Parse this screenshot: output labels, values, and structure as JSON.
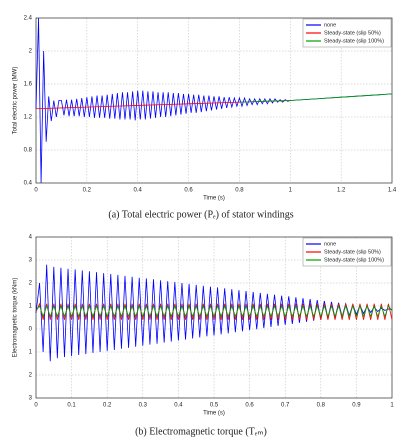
{
  "chart_data": [
    {
      "type": "line",
      "ylabel": "Total electric power (MW)",
      "xlabel": "Time (s)",
      "caption": "(a) Total electric power (Pₑ) of stator windings",
      "xlim": [
        0,
        1.4
      ],
      "xticks": [
        0,
        0.2,
        0.4,
        0.6,
        0.8,
        1,
        1.2,
        1.4
      ],
      "ylim": [
        0.4,
        2.4
      ],
      "yticks": [
        0.4,
        0.8,
        1.2,
        1.6,
        2,
        2.4
      ],
      "grid": true,
      "legend": "top-right",
      "series": [
        {
          "name": "none",
          "color": "#0000ff",
          "x": [
            0,
            0.01,
            0.02,
            0.03,
            0.04,
            0.05,
            0.06,
            0.07,
            0.08,
            0.09,
            0.1,
            0.11,
            0.12,
            0.13,
            0.14,
            0.15,
            0.16,
            0.17,
            0.18,
            0.19,
            0.2,
            0.21,
            0.22,
            0.23,
            0.24,
            0.25,
            0.26,
            0.27,
            0.28,
            0.29,
            0.3,
            0.31,
            0.32,
            0.33,
            0.34,
            0.35,
            0.36,
            0.37,
            0.38,
            0.39,
            0.4,
            0.41,
            0.42,
            0.43,
            0.44,
            0.45,
            0.46,
            0.47,
            0.48,
            0.49,
            0.5,
            0.51,
            0.52,
            0.53,
            0.54,
            0.55,
            0.56,
            0.57,
            0.58,
            0.59,
            0.6,
            0.61,
            0.62,
            0.63,
            0.64,
            0.65,
            0.66,
            0.67,
            0.68,
            0.69,
            0.7,
            0.71,
            0.72,
            0.73,
            0.74,
            0.75,
            0.76,
            0.77,
            0.78,
            0.79,
            0.8,
            0.81,
            0.82,
            0.83,
            0.84,
            0.85,
            0.86,
            0.87,
            0.88,
            0.89,
            0.9,
            0.91,
            0.92,
            0.93,
            0.94,
            0.95,
            0.96,
            0.97,
            0.98,
            0.99,
            1,
            1.1,
            1.2,
            1.3,
            1.4
          ],
          "values": [
            1.3,
            2.4,
            0.4,
            2.0,
            0.9,
            1.45,
            1.15,
            1.4,
            1.2,
            1.4,
            1.4,
            1.22,
            1.41,
            1.21,
            1.41,
            1.21,
            1.42,
            1.21,
            1.43,
            1.2,
            1.44,
            1.2,
            1.45,
            1.19,
            1.46,
            1.19,
            1.46,
            1.19,
            1.47,
            1.18,
            1.48,
            1.18,
            1.49,
            1.17,
            1.5,
            1.17,
            1.5,
            1.17,
            1.51,
            1.16,
            1.52,
            1.17,
            1.52,
            1.17,
            1.51,
            1.18,
            1.51,
            1.19,
            1.5,
            1.2,
            1.5,
            1.2,
            1.5,
            1.21,
            1.49,
            1.22,
            1.49,
            1.23,
            1.48,
            1.24,
            1.48,
            1.25,
            1.47,
            1.25,
            1.47,
            1.26,
            1.46,
            1.27,
            1.46,
            1.28,
            1.45,
            1.29,
            1.45,
            1.3,
            1.44,
            1.31,
            1.44,
            1.32,
            1.43,
            1.33,
            1.43,
            1.33,
            1.43,
            1.34,
            1.42,
            1.35,
            1.42,
            1.35,
            1.42,
            1.36,
            1.42,
            1.36,
            1.42,
            1.37,
            1.42,
            1.38,
            1.41,
            1.38,
            1.41,
            1.39,
            1.4,
            1.42,
            1.44,
            1.46,
            1.48
          ]
        },
        {
          "name": "Steady-state (slip 50%)",
          "color": "#ff0000",
          "x": [
            0,
            0.1,
            0.2,
            0.3,
            0.4,
            0.5,
            0.6,
            0.7,
            0.8,
            0.9,
            1
          ],
          "values": [
            1.3,
            1.31,
            1.32,
            1.33,
            1.34,
            1.35,
            1.36,
            1.37,
            1.38,
            1.39,
            1.4
          ]
        },
        {
          "name": "Steady-state (slip 100%)",
          "color": "#00a000",
          "x": [
            0.8,
            0.9,
            1,
            1.1,
            1.2,
            1.3,
            1.4
          ],
          "values": [
            1.38,
            1.39,
            1.4,
            1.42,
            1.44,
            1.46,
            1.48
          ]
        }
      ]
    },
    {
      "type": "line",
      "ylabel": "Electromagnetic torque (kNm)",
      "xlabel": "Time (s)",
      "caption": "(b) Electromagnetic torque (Tₑₘ)",
      "xlim": [
        0,
        1
      ],
      "xticks": [
        0,
        0.1,
        0.2,
        0.3,
        0.4,
        0.5,
        0.6,
        0.7,
        0.8,
        0.9,
        1
      ],
      "ylim": [
        -3,
        4
      ],
      "yticks": [
        {
          "value": -3,
          "label": "3"
        },
        {
          "value": -2,
          "label": "2"
        },
        {
          "value": -1,
          "label": "1"
        },
        0,
        1,
        2,
        3,
        4
      ],
      "grid": true,
      "legend": "top-right",
      "x": [
        0,
        0.01,
        0.02,
        0.03,
        0.04,
        0.05,
        0.06,
        0.07,
        0.08,
        0.09,
        0.1,
        0.11,
        0.12,
        0.13,
        0.14,
        0.15,
        0.16,
        0.17,
        0.18,
        0.19,
        0.2,
        0.21,
        0.22,
        0.23,
        0.24,
        0.25,
        0.26,
        0.27,
        0.28,
        0.29,
        0.3,
        0.31,
        0.32,
        0.33,
        0.34,
        0.35,
        0.36,
        0.37,
        0.38,
        0.39,
        0.4,
        0.41,
        0.42,
        0.43,
        0.44,
        0.45,
        0.46,
        0.47,
        0.48,
        0.49,
        0.5,
        0.51,
        0.52,
        0.53,
        0.54,
        0.55,
        0.56,
        0.57,
        0.58,
        0.59,
        0.6,
        0.61,
        0.62,
        0.63,
        0.64,
        0.65,
        0.66,
        0.67,
        0.68,
        0.69,
        0.7,
        0.71,
        0.72,
        0.73,
        0.74,
        0.75,
        0.76,
        0.77,
        0.78,
        0.79,
        0.8,
        0.81,
        0.82,
        0.83,
        0.84,
        0.85,
        0.86,
        0.87,
        0.88,
        0.89,
        0.9,
        0.91,
        0.92,
        0.93,
        0.94,
        0.95,
        0.96,
        0.97,
        0.98,
        0.99,
        1
      ],
      "series": [
        {
          "name": "none",
          "color": "#0000ff",
          "values": [
            0.7,
            2.0,
            -1.0,
            2.8,
            -1.4,
            2.7,
            -1.27,
            2.66,
            -1.22,
            2.62,
            -1.18,
            2.59,
            -1.13,
            2.55,
            -1.09,
            2.51,
            -1.04,
            2.47,
            -1.0,
            2.43,
            -0.95,
            2.39,
            -0.91,
            2.35,
            -0.86,
            2.31,
            -0.82,
            2.27,
            -0.77,
            2.23,
            -0.73,
            2.2,
            -0.68,
            2.16,
            -0.64,
            2.12,
            -0.59,
            2.08,
            -0.55,
            2.04,
            -0.5,
            2.0,
            -0.46,
            1.96,
            -0.41,
            1.92,
            -0.37,
            1.88,
            -0.32,
            1.84,
            -0.28,
            1.81,
            -0.23,
            1.77,
            -0.19,
            1.73,
            -0.14,
            1.69,
            -0.1,
            1.65,
            -0.05,
            1.61,
            -0.01,
            1.57,
            0.04,
            1.53,
            0.09,
            1.49,
            0.13,
            1.45,
            0.18,
            1.42,
            0.22,
            1.38,
            0.27,
            1.34,
            0.31,
            1.3,
            0.36,
            1.26,
            0.4,
            1.22,
            0.45,
            1.18,
            0.49,
            1.14,
            0.54,
            1.1,
            0.58,
            1.06,
            0.63,
            1.03,
            0.67,
            0.99,
            0.72,
            0.95,
            0.76,
            0.91,
            0.81,
            0.87,
            0.85
          ]
        },
        {
          "name": "Steady-state (slip 50%)",
          "color": "#ff0000",
          "values": [
            0.75,
            1.1,
            0.4,
            1.1,
            0.4,
            1.1,
            0.4,
            1.1,
            0.4,
            1.1,
            0.4,
            1.1,
            0.4,
            1.1,
            0.4,
            1.1,
            0.4,
            1.1,
            0.4,
            1.1,
            0.4,
            1.1,
            0.4,
            1.1,
            0.4,
            1.1,
            0.4,
            1.1,
            0.4,
            1.1,
            0.4,
            1.1,
            0.4,
            1.1,
            0.4,
            1.1,
            0.4,
            1.1,
            0.4,
            1.1,
            0.4,
            1.1,
            0.4,
            1.1,
            0.4,
            1.1,
            0.4,
            1.1,
            0.4,
            1.1,
            0.4,
            1.1,
            0.4,
            1.1,
            0.4,
            1.1,
            0.4,
            1.1,
            0.4,
            1.1,
            0.4,
            1.1,
            0.4,
            1.1,
            0.4,
            1.1,
            0.4,
            1.1,
            0.4,
            1.1,
            0.4,
            1.1,
            0.4,
            1.1,
            0.4,
            1.1,
            0.4,
            1.1,
            0.4,
            1.1,
            0.4,
            1.1,
            0.4,
            1.1,
            0.4,
            1.1,
            0.4,
            1.1,
            0.4,
            1.1,
            0.4,
            1.1,
            0.4,
            1.1,
            0.4,
            1.1,
            0.4,
            1.1,
            0.4,
            1.1,
            0.4
          ]
        },
        {
          "name": "Steady-state (slip 100%)",
          "color": "#00a000",
          "values": [
            0.8,
            1.0,
            0.55,
            1.0,
            0.55,
            1.0,
            0.55,
            1.0,
            0.55,
            1.0,
            0.55,
            1.0,
            0.55,
            1.0,
            0.55,
            1.0,
            0.55,
            1.0,
            0.55,
            1.0,
            0.55,
            1.0,
            0.55,
            1.0,
            0.55,
            1.0,
            0.55,
            1.0,
            0.55,
            1.0,
            0.55,
            1.0,
            0.55,
            1.0,
            0.55,
            1.0,
            0.55,
            1.0,
            0.55,
            1.0,
            0.55,
            1.0,
            0.55,
            1.0,
            0.55,
            1.0,
            0.55,
            1.0,
            0.55,
            1.0,
            0.55,
            1.0,
            0.55,
            1.0,
            0.55,
            1.0,
            0.55,
            1.0,
            0.55,
            1.0,
            0.55,
            1.0,
            0.55,
            1.0,
            0.55,
            1.0,
            0.55,
            1.0,
            0.55,
            1.0,
            0.55,
            1.0,
            0.55,
            1.0,
            0.55,
            1.0,
            0.55,
            1.0,
            0.55,
            1.0,
            0.55,
            1.0,
            0.55,
            1.0,
            0.55,
            1.0,
            0.55,
            1.0,
            0.55,
            1.0,
            0.55,
            1.0,
            0.55,
            1.0,
            0.55,
            1.0,
            0.55,
            1.0,
            0.55,
            1.0,
            0.8
          ]
        }
      ]
    }
  ]
}
